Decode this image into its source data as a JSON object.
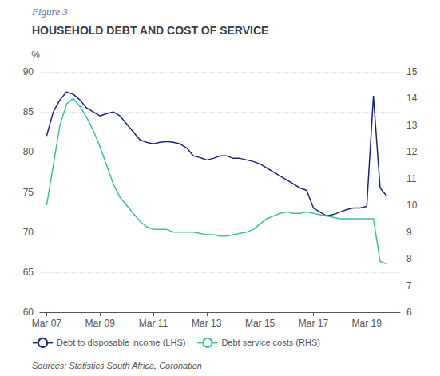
{
  "chart_data": {
    "type": "line",
    "title": "HOUSEHOLD DEBT AND COST OF SERVICE",
    "annotations": [
      "Figure 3",
      "Sources: Statistics South Africa, Coronation"
    ],
    "ylabel": "%",
    "grid": true,
    "legend": "lower left",
    "x": [
      2007.25,
      2007.5,
      2007.75,
      2008.0,
      2008.25,
      2008.5,
      2008.75,
      2009.0,
      2009.25,
      2009.5,
      2009.75,
      2010.0,
      2010.25,
      2010.5,
      2010.75,
      2011.0,
      2011.25,
      2011.5,
      2011.75,
      2012.0,
      2012.25,
      2012.5,
      2012.75,
      2013.0,
      2013.25,
      2013.5,
      2013.75,
      2014.0,
      2014.25,
      2014.5,
      2014.75,
      2015.0,
      2015.25,
      2015.5,
      2015.75,
      2016.0,
      2016.25,
      2016.5,
      2016.75,
      2017.0,
      2017.25,
      2017.5,
      2017.75,
      2018.0,
      2018.25,
      2018.5,
      2018.75,
      2019.0,
      2019.25,
      2019.5,
      2019.75,
      2020.0
    ],
    "xlim": [
      2007.0,
      2020.5
    ],
    "xticks": [
      {
        "value": 2007.25,
        "label": "Mar 07"
      },
      {
        "value": 2009.25,
        "label": "Mar 09"
      },
      {
        "value": 2011.25,
        "label": "Mar 11"
      },
      {
        "value": 2013.25,
        "label": "Mar 13"
      },
      {
        "value": 2015.25,
        "label": "Mar 15"
      },
      {
        "value": 2017.25,
        "label": "Mar 17"
      },
      {
        "value": 2019.25,
        "label": "Mar 19"
      }
    ],
    "ylim": [
      60,
      90
    ],
    "yticks": [
      60,
      65,
      70,
      75,
      80,
      85,
      90
    ],
    "y2lim": [
      6,
      15
    ],
    "y2ticks": [
      6,
      7,
      8,
      9,
      10,
      11,
      12,
      13,
      14,
      15
    ],
    "series": [
      {
        "name": "Debt to disposable income (LHS)",
        "color": "#1a237e",
        "values": [
          82.0,
          85.0,
          86.5,
          87.5,
          87.2,
          86.5,
          85.5,
          85.0,
          84.5,
          84.8,
          85.0,
          84.5,
          83.5,
          82.5,
          81.5,
          81.2,
          81.0,
          81.2,
          81.3,
          81.2,
          81.0,
          80.5,
          79.5,
          79.3,
          79.0,
          79.2,
          79.5,
          79.5,
          79.2,
          79.2,
          79.0,
          78.8,
          78.5,
          78.0,
          77.5,
          77.0,
          76.5,
          76.0,
          75.5,
          75.2,
          73.0,
          72.5,
          72.0,
          72.2,
          72.5,
          72.8,
          73.0,
          73.0,
          73.2,
          87.0,
          75.5,
          74.5
        ]
      },
      {
        "name": "Debt service costs (RHS)",
        "color": "#3dbfa0",
        "axis": "y2",
        "values": [
          10.0,
          11.5,
          13.0,
          13.8,
          14.0,
          13.7,
          13.3,
          12.8,
          12.2,
          11.5,
          10.8,
          10.3,
          10.0,
          9.7,
          9.4,
          9.2,
          9.1,
          9.1,
          9.1,
          9.0,
          9.0,
          9.0,
          9.0,
          8.95,
          8.9,
          8.9,
          8.85,
          8.85,
          8.9,
          8.95,
          9.0,
          9.1,
          9.3,
          9.5,
          9.6,
          9.7,
          9.75,
          9.7,
          9.7,
          9.75,
          9.7,
          9.65,
          9.6,
          9.55,
          9.5,
          9.5,
          9.5,
          9.5,
          9.5,
          9.5,
          7.9,
          7.8
        ]
      }
    ]
  }
}
